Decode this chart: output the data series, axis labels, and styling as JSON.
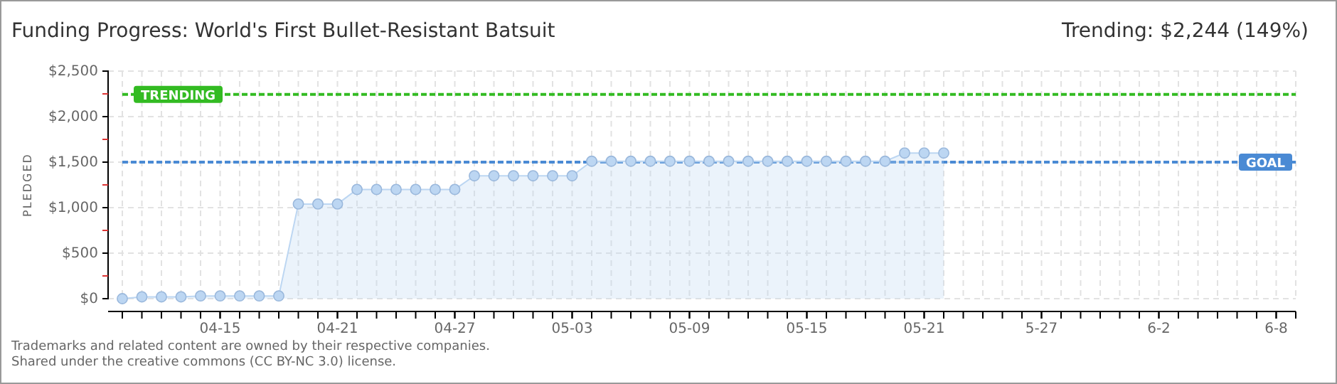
{
  "chart_data": {
    "type": "area",
    "title": "Funding Progress: World's First Bullet-Resistant Batsuit",
    "subtitle": "Trending: $2,244 (149%)",
    "ylabel": "PLEDGED",
    "x": [
      "--04-10",
      "--04-11",
      "--04-12",
      "--04-13",
      "--04-14",
      "--04-15",
      "--04-16",
      "--04-17",
      "--04-18",
      "--04-19",
      "--04-20",
      "--04-21",
      "--04-22",
      "--04-23",
      "--04-24",
      "--04-25",
      "--04-26",
      "--04-27",
      "--04-28",
      "--04-29",
      "--04-30",
      "--05-01",
      "--05-02",
      "--05-03",
      "--05-04",
      "--05-05",
      "--05-06",
      "--05-07",
      "--05-08",
      "--05-09",
      "--05-10",
      "--05-11",
      "--05-12",
      "--05-13",
      "--05-14",
      "--05-15",
      "--05-16",
      "--05-17",
      "--05-18",
      "--05-19",
      "--05-20",
      "--05-21",
      "--05-22"
    ],
    "series": [
      {
        "color": "#bcd6f2",
        "values": [
          0,
          20,
          20,
          20,
          30,
          30,
          30,
          30,
          30,
          1040,
          1040,
          1040,
          1200,
          1200,
          1200,
          1200,
          1200,
          1200,
          1350,
          1350,
          1350,
          1350,
          1350,
          1350,
          1510,
          1510,
          1510,
          1510,
          1510,
          1510,
          1510,
          1510,
          1510,
          1510,
          1510,
          1510,
          1510,
          1510,
          1510,
          1510,
          1600,
          1600,
          1600
        ]
      }
    ],
    "marker": "circle",
    "grid": true,
    "ylim": [
      0,
      2500
    ],
    "yticks": [
      {
        "value": 0,
        "label": "$0"
      },
      {
        "value": 250,
        "label": null
      },
      {
        "value": 500,
        "label": "$500"
      },
      {
        "value": 750,
        "label": null
      },
      {
        "value": 1000,
        "label": "$1,000"
      },
      {
        "value": 1250,
        "label": null
      },
      {
        "value": 1500,
        "label": "$1,500"
      },
      {
        "value": 1750,
        "label": null
      },
      {
        "value": 2000,
        "label": "$2,000"
      },
      {
        "value": 2250,
        "label": null
      },
      {
        "value": 2500,
        "label": "$2,500"
      }
    ],
    "xlim": [
      "--04-10",
      "--06-09"
    ],
    "xticks": [
      {
        "value": "--04-15",
        "label": "04-15"
      },
      {
        "value": "--04-21",
        "label": "04-21"
      },
      {
        "value": "--04-27",
        "label": "04-27"
      },
      {
        "value": "--05-03",
        "label": "05-03"
      },
      {
        "value": "--05-09",
        "label": "05-09"
      },
      {
        "value": "--05-15",
        "label": "05-15"
      },
      {
        "value": "--05-21",
        "label": "05-21"
      },
      {
        "value": "--05-27",
        "label": "5-27"
      },
      {
        "value": "--06-02",
        "label": "6-2"
      },
      {
        "value": "--06-08",
        "label": "6-8"
      }
    ],
    "ref_lines": [
      {
        "axis": "y",
        "value": 2244,
        "label": "TRENDING",
        "color": "#33bb22",
        "line_style": "dashed"
      },
      {
        "axis": "y",
        "value": 1500,
        "label": "GOAL",
        "color": "#4a8ad4",
        "line_style": "dashed"
      }
    ],
    "annotations": [
      "Trademarks and related content are owned by their respective companies.",
      "Shared under the creative commons (CC BY-NC 3.0) license."
    ]
  }
}
